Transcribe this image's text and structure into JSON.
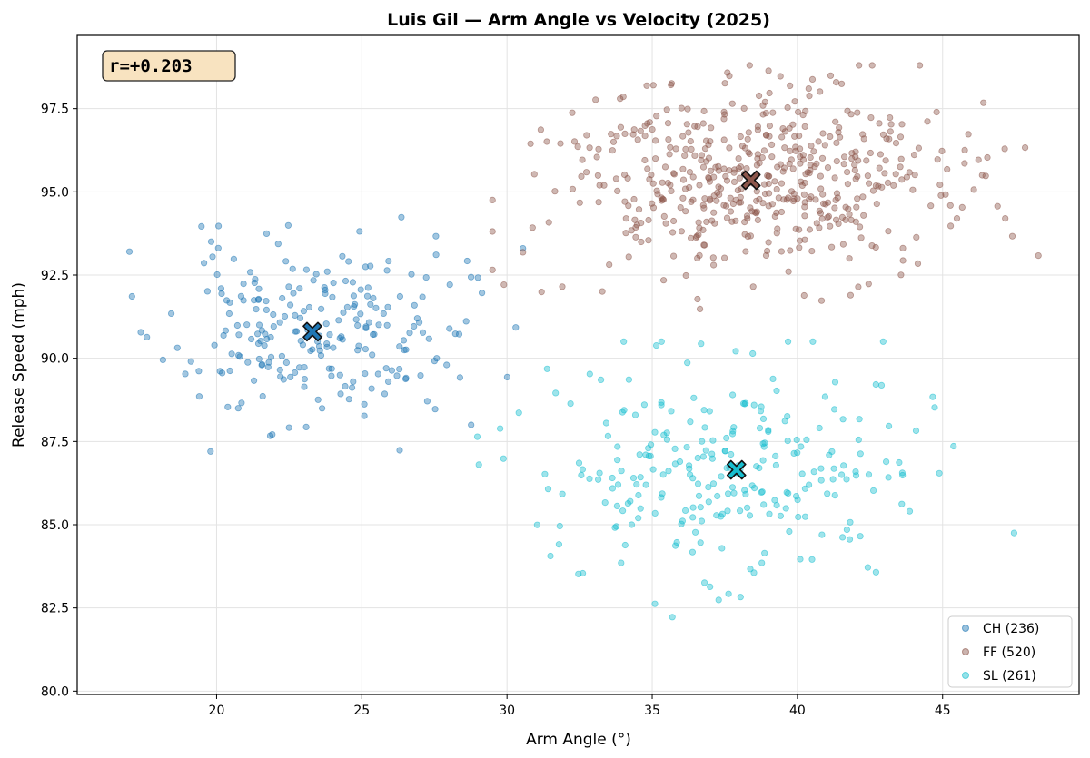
{
  "chart_data": {
    "type": "scatter",
    "title": "Luis Gil — Arm Angle vs Velocity (2025)",
    "xlabel": "Arm Angle (°)",
    "ylabel": "Release Speed (mph)",
    "xlim": [
      15.2,
      49.7
    ],
    "ylim": [
      79.9,
      99.7
    ],
    "xticks": [
      20,
      25,
      30,
      35,
      40,
      45
    ],
    "yticks": [
      80.0,
      82.5,
      85.0,
      87.5,
      90.0,
      92.5,
      95.0,
      97.5
    ],
    "grid": true,
    "legend_position": "bottom-right",
    "annotation": "r=+0.203",
    "series": [
      {
        "name": "CH",
        "count": 236,
        "legend_label": "CH (236)",
        "color": "#1f77b4",
        "centroid": {
          "x": 23.3,
          "y": 90.8
        },
        "spread": {
          "x": 2.5,
          "y": 1.4
        },
        "range_x": [
          17.0,
          32.0
        ],
        "range_y": [
          87.2,
          94.5
        ],
        "seed": 11
      },
      {
        "name": "FF",
        "count": 520,
        "legend_label": "FF (520)",
        "color": "#8c564b",
        "centroid": {
          "x": 38.4,
          "y": 95.35
        },
        "spread": {
          "x": 3.3,
          "y": 1.4
        },
        "range_x": [
          29.5,
          48.3
        ],
        "range_y": [
          91.2,
          98.8
        ],
        "seed": 23
      },
      {
        "name": "SL",
        "count": 261,
        "legend_label": "SL (261)",
        "color": "#17becf",
        "centroid": {
          "x": 37.9,
          "y": 86.65
        },
        "spread": {
          "x": 3.3,
          "y": 1.6
        },
        "range_x": [
          27.6,
          48.3
        ],
        "range_y": [
          80.8,
          90.5
        ],
        "seed": 37
      }
    ]
  }
}
